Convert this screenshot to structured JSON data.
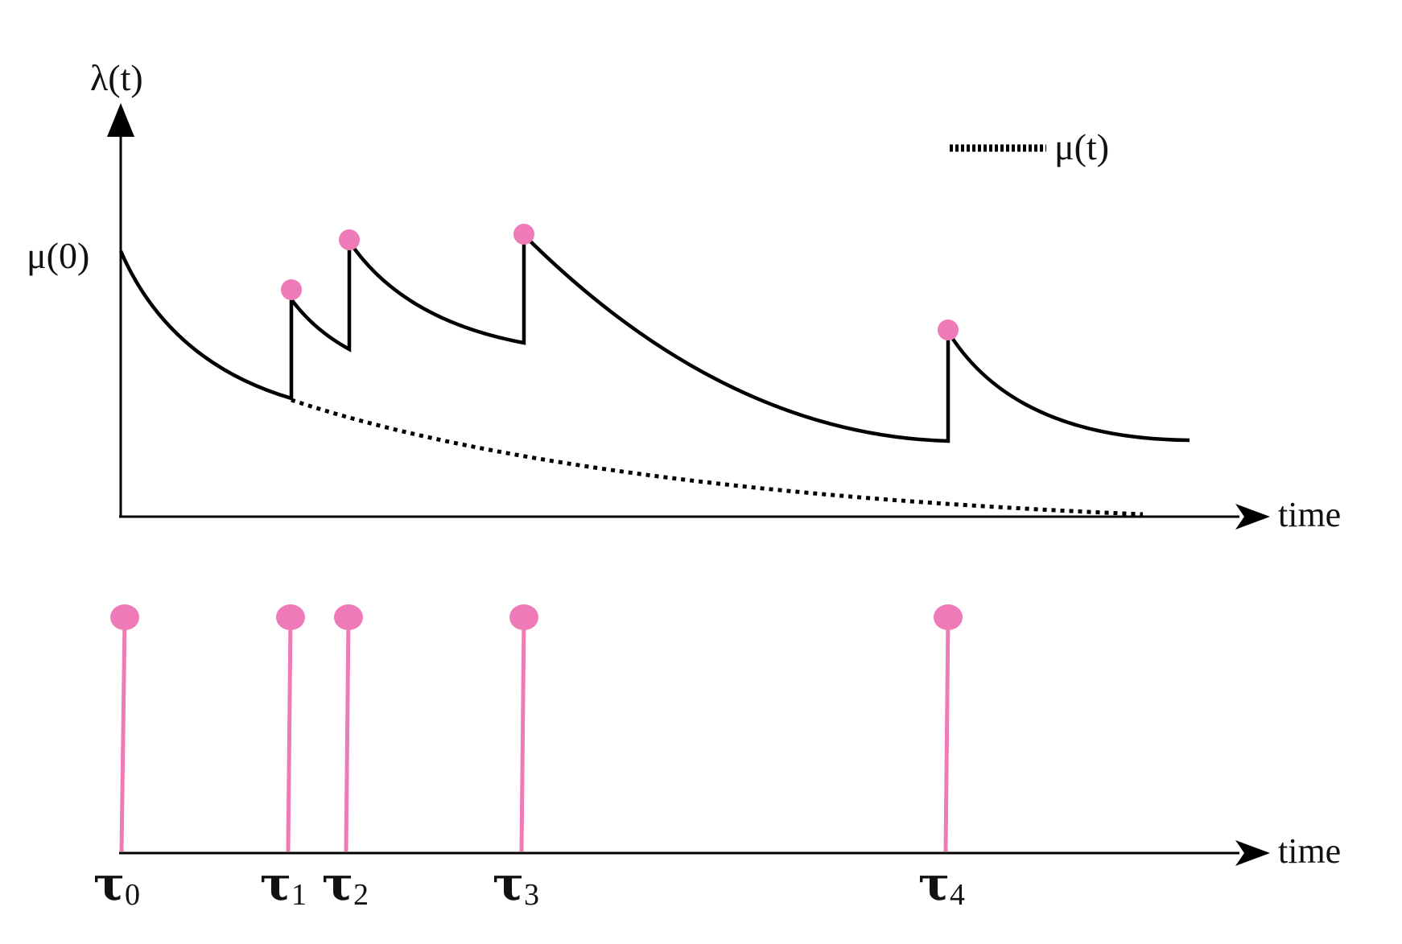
{
  "top_panel": {
    "y_axis_label": "λ(t)",
    "x_axis_label": "time",
    "y_tick_label": "μ(0)",
    "legend": {
      "line_style": "dotted",
      "label": "μ(t)"
    }
  },
  "bottom_panel": {
    "x_axis_label": "time",
    "events": [
      {
        "symbol": "τ",
        "subscript": "0"
      },
      {
        "symbol": "τ",
        "subscript": "1"
      },
      {
        "symbol": "τ",
        "subscript": "2"
      },
      {
        "symbol": "τ",
        "subscript": "3"
      },
      {
        "symbol": "τ",
        "subscript": "4"
      }
    ]
  },
  "colors": {
    "curve": "#000000",
    "event_marker": "#ef7ab8",
    "event_stem": "#ef7ab8"
  }
}
